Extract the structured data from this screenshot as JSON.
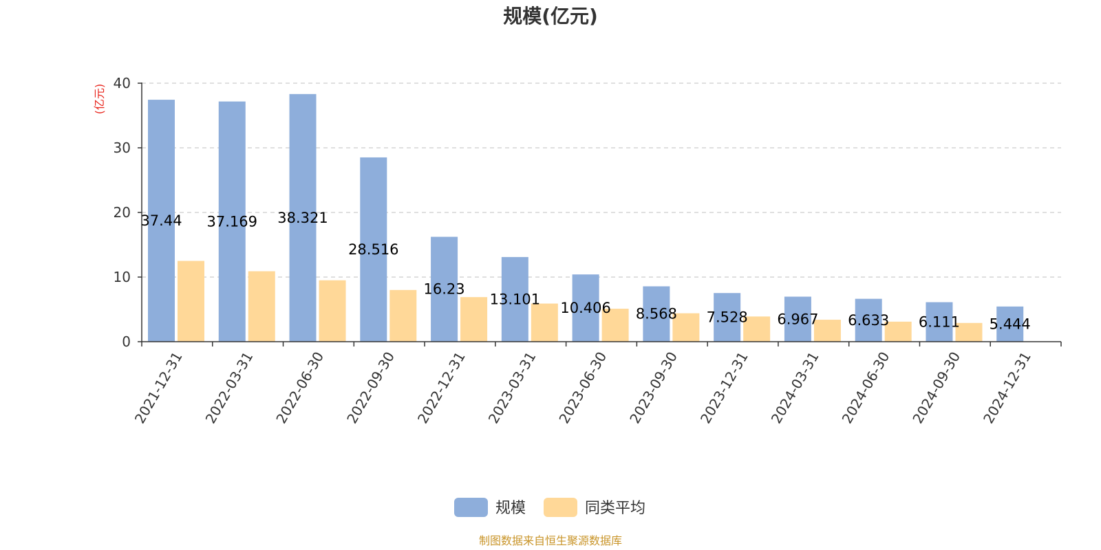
{
  "chart_data": {
    "type": "bar",
    "title": "规模(亿元)",
    "ylabel": "(亿元)",
    "ylim": [
      0,
      40
    ],
    "yticks": [
      0,
      10,
      20,
      30,
      40
    ],
    "grid": true,
    "legend_position": "bottom",
    "categories": [
      "2021-12-31",
      "2022-03-31",
      "2022-06-30",
      "2022-09-30",
      "2022-12-31",
      "2023-03-31",
      "2023-06-30",
      "2023-09-30",
      "2023-12-31",
      "2024-03-31",
      "2024-06-30",
      "2024-09-30",
      "2024-12-31"
    ],
    "series": [
      {
        "name": "规模",
        "color": "#8eaedb",
        "values": [
          37.44,
          37.169,
          38.321,
          28.516,
          16.23,
          13.101,
          10.406,
          8.568,
          7.528,
          6.967,
          6.633,
          6.111,
          5.444
        ],
        "labels": [
          "37.44",
          "37.169",
          "38.321",
          "28.516",
          "16.23",
          "13.101",
          "10.406",
          "8.568",
          "7.528",
          "6.967",
          "6.633",
          "6.111",
          "5.444"
        ]
      },
      {
        "name": "同类平均",
        "color": "#ffd898",
        "values": [
          12.5,
          10.9,
          9.5,
          8.0,
          6.9,
          5.9,
          5.1,
          4.4,
          3.9,
          3.4,
          3.1,
          2.9,
          null
        ]
      }
    ],
    "source": "制图数据来自恒生聚源数据库"
  }
}
